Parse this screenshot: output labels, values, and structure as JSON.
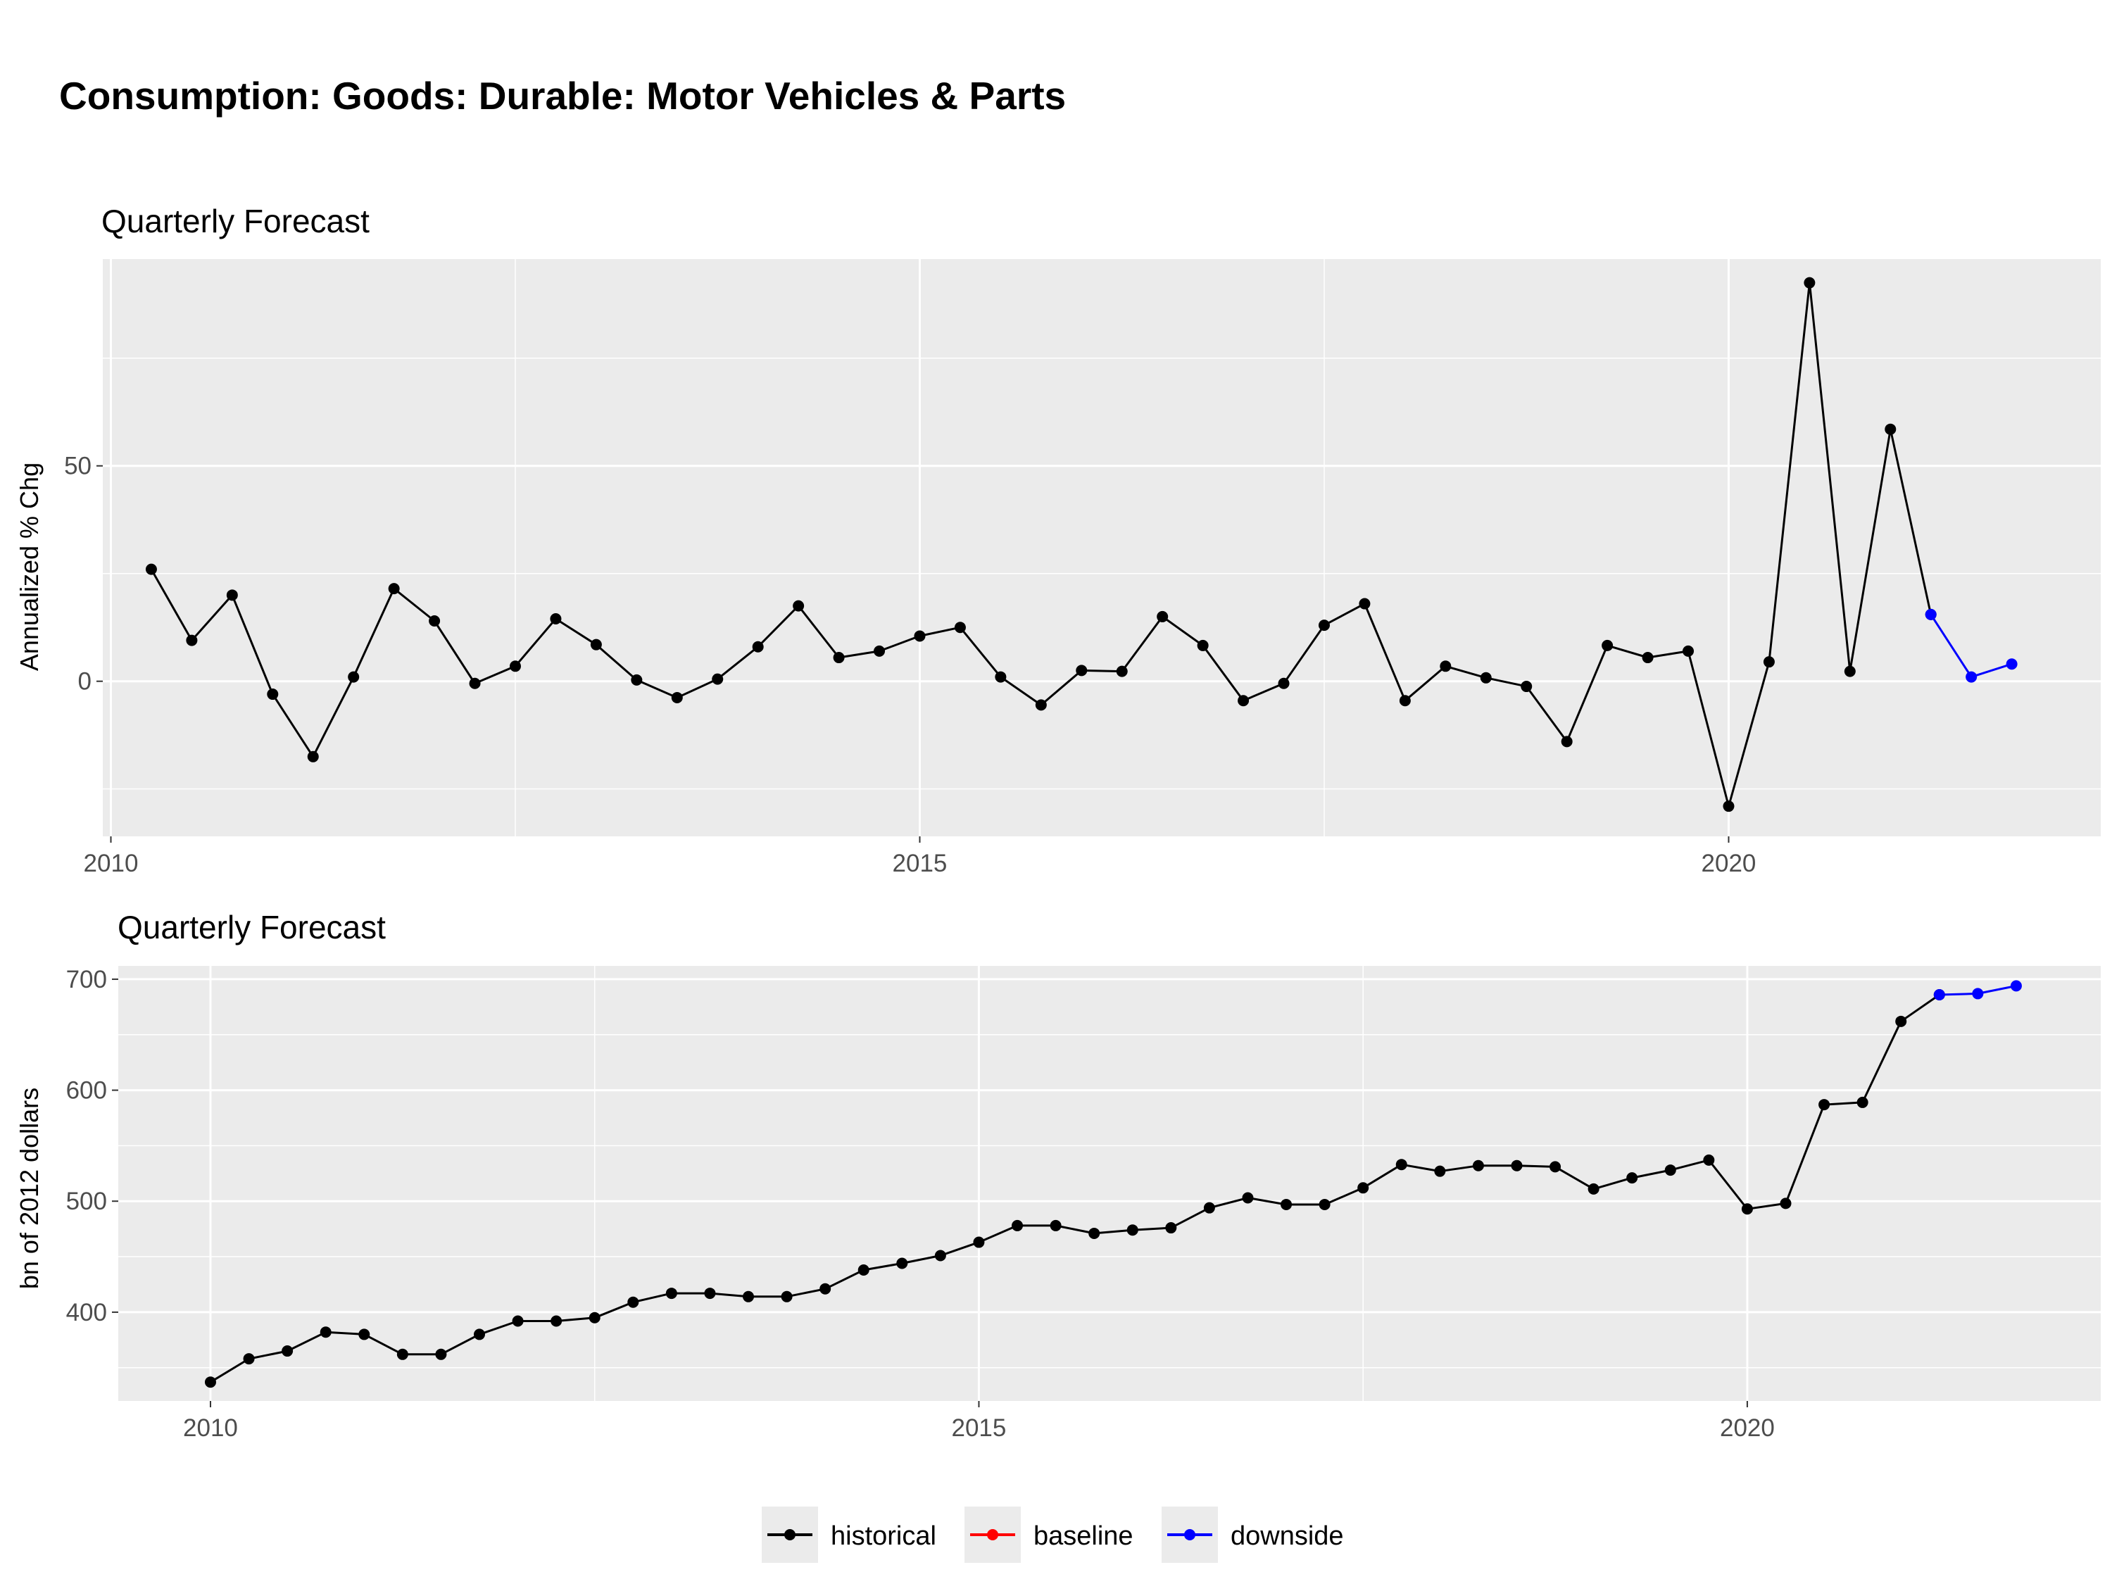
{
  "title": "Consumption: Goods: Durable: Motor Vehicles & Parts",
  "legend": [
    {
      "label": "historical",
      "color": "#000000"
    },
    {
      "label": "baseline",
      "color": "#ff0000"
    },
    {
      "label": "downside",
      "color": "#0000ff"
    }
  ],
  "chart_data": [
    {
      "type": "line",
      "subtitle": "Quarterly Forecast",
      "xlabel": "",
      "ylabel": "Annualized % Chg",
      "xlim": [
        2009.95,
        2022.3
      ],
      "ylim": [
        -36,
        98
      ],
      "x_ticks": [
        2010,
        2015,
        2020
      ],
      "y_ticks": [
        0,
        50
      ],
      "grid": true,
      "legend_position": "bottom",
      "series": [
        {
          "name": "historical",
          "x": [
            2010.25,
            2010.5,
            2010.75,
            2011.0,
            2011.25,
            2011.5,
            2011.75,
            2012.0,
            2012.25,
            2012.5,
            2012.75,
            2013.0,
            2013.25,
            2013.5,
            2013.75,
            2014.0,
            2014.25,
            2014.5,
            2014.75,
            2015.0,
            2015.25,
            2015.5,
            2015.75,
            2016.0,
            2016.25,
            2016.5,
            2016.75,
            2017.0,
            2017.25,
            2017.5,
            2017.75,
            2018.0,
            2018.25,
            2018.5,
            2018.75,
            2019.0,
            2019.25,
            2019.5,
            2019.75,
            2020.0,
            2020.25,
            2020.5,
            2020.75,
            2021.0,
            2021.25
          ],
          "values": [
            26,
            9.5,
            20,
            -3,
            -17.5,
            1,
            21.5,
            14,
            -0.5,
            3.5,
            14.5,
            8.5,
            0.3,
            -3.8,
            0.5,
            8,
            17.5,
            5.5,
            7,
            10.5,
            12.5,
            1,
            -5.5,
            2.5,
            2.3,
            15,
            8.3,
            -4.5,
            -0.5,
            13,
            18,
            -4.5,
            3.5,
            0.8,
            -1.2,
            -14,
            8.3,
            5.5,
            7,
            -29,
            4.5,
            92.5,
            2.3,
            58.5,
            15.5
          ]
        },
        {
          "name": "downside",
          "x": [
            2021.25,
            2021.5,
            2021.75
          ],
          "values": [
            15.5,
            1,
            4
          ]
        }
      ]
    },
    {
      "type": "line",
      "subtitle": "Quarterly Forecast",
      "xlabel": "",
      "ylabel": "bn of 2012 dollars",
      "xlim": [
        2009.4,
        2022.3
      ],
      "ylim": [
        320,
        712
      ],
      "x_ticks": [
        2010,
        2015,
        2020
      ],
      "y_ticks": [
        400,
        500,
        600,
        700
      ],
      "grid": true,
      "legend_position": "bottom",
      "series": [
        {
          "name": "historical",
          "x": [
            2010.0,
            2010.25,
            2010.5,
            2010.75,
            2011.0,
            2011.25,
            2011.5,
            2011.75,
            2012.0,
            2012.25,
            2012.5,
            2012.75,
            2013.0,
            2013.25,
            2013.5,
            2013.75,
            2014.0,
            2014.25,
            2014.5,
            2014.75,
            2015.0,
            2015.25,
            2015.5,
            2015.75,
            2016.0,
            2016.25,
            2016.5,
            2016.75,
            2017.0,
            2017.25,
            2017.5,
            2017.75,
            2018.0,
            2018.25,
            2018.5,
            2018.75,
            2019.0,
            2019.25,
            2019.5,
            2019.75,
            2020.0,
            2020.25,
            2020.5,
            2020.75,
            2021.0,
            2021.25
          ],
          "values": [
            337,
            358,
            365,
            382,
            380,
            362,
            362,
            380,
            392,
            392,
            395,
            409,
            417,
            417,
            414,
            414,
            421,
            438,
            444,
            451,
            463,
            478,
            478,
            471,
            474,
            476,
            494,
            503,
            497,
            497,
            512,
            533,
            527,
            532,
            532,
            531,
            511,
            521,
            528,
            537,
            493,
            498,
            587,
            589,
            662,
            686
          ]
        },
        {
          "name": "downside",
          "x": [
            2021.25,
            2021.5,
            2021.75
          ],
          "values": [
            686,
            687,
            694
          ]
        }
      ]
    }
  ]
}
